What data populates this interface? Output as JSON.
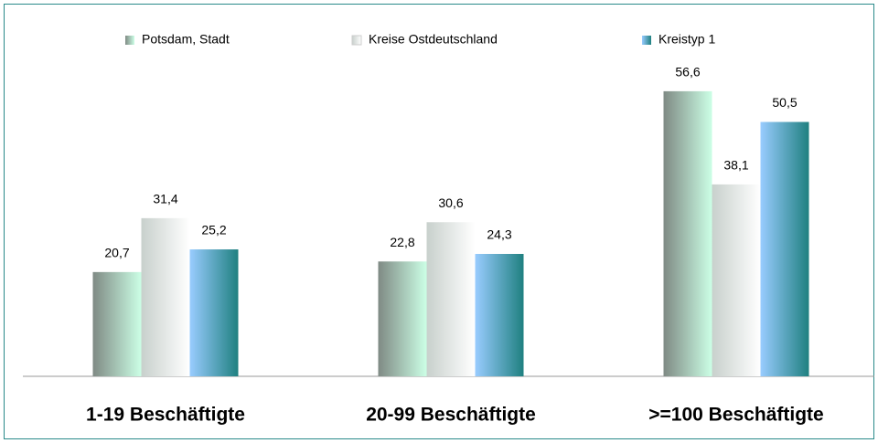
{
  "chart_data": {
    "type": "bar",
    "categories": [
      "1-19 Beschäftigte",
      "20-99 Beschäftigte",
      ">=100 Beschäftigte"
    ],
    "series": [
      {
        "name": "Potsdam, Stadt",
        "colors": [
          "#7f8a84",
          "#ccffe6"
        ],
        "values": [
          20.7,
          22.8,
          56.6
        ],
        "value_labels": [
          "20,7",
          "22,8",
          "56,6"
        ]
      },
      {
        "name": "Kreise Ostdeutschland",
        "colors": [
          "#c8d0cc",
          "#ffffff"
        ],
        "values": [
          31.4,
          30.6,
          38.1
        ],
        "value_labels": [
          "31,4",
          "30,6",
          "38,1"
        ]
      },
      {
        "name": "Kreistyp 1",
        "colors": [
          "#99ccff",
          "#1f8080"
        ],
        "values": [
          25.2,
          24.3,
          50.5
        ],
        "value_labels": [
          "25,2",
          "24,3",
          "50,5"
        ]
      }
    ],
    "ylim": [
      0,
      70
    ]
  }
}
